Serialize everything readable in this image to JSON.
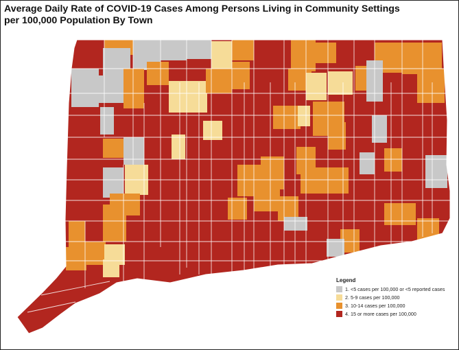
{
  "title_line1": "Average Daily Rate of COVID-19 Cases Among Persons Living in Community Settings",
  "title_line2": "per 100,000 Population By Town",
  "legend": {
    "title": "Legend",
    "items": [
      {
        "label": "1. <5 cases per 100,000 or <5 reported cases",
        "color": "#c8c8c8"
      },
      {
        "label": "2. 5-9 cases per 100,000",
        "color": "#f6dc98"
      },
      {
        "label": "3. 10-14 cases per 100,000",
        "color": "#e8912e"
      },
      {
        "label": "4. 15 or more cases per 100,000",
        "color": "#b2261f"
      }
    ]
  },
  "colors": {
    "cat1": "#c8c8c8",
    "cat2": "#f6dc98",
    "cat3": "#e8912e",
    "cat4": "#b2261f",
    "border": "#ffffff"
  }
}
